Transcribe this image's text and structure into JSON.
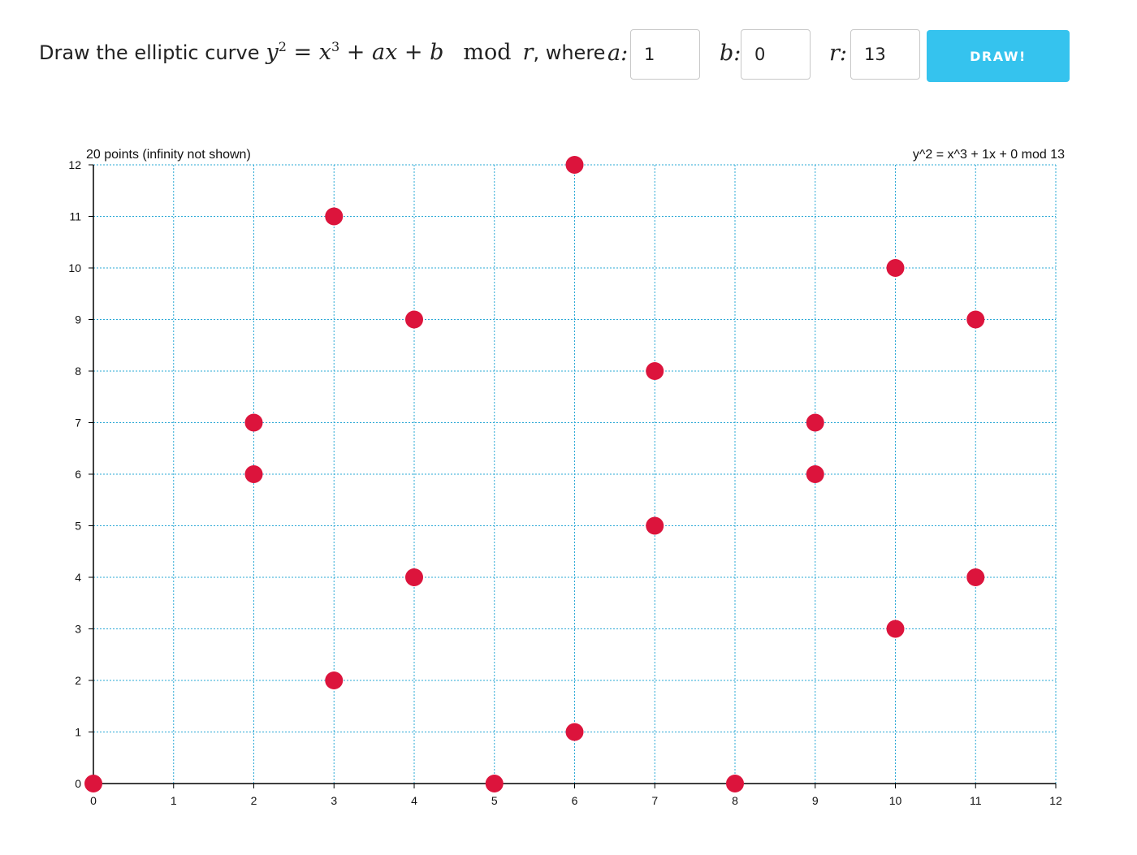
{
  "form": {
    "prompt_text": "Draw the elliptic curve",
    "formula": {
      "y": "y",
      "y_exp": "2",
      "eq": "=",
      "x": "x",
      "x_exp": "3",
      "rest": "+ ax + b",
      "mod": "mod",
      "r": "r"
    },
    "where_text": ", where",
    "a_label": "a:",
    "b_label": "b:",
    "r_label": "r:",
    "a_value": "1",
    "b_value": "0",
    "r_value": "13",
    "draw_label": "DRAW!",
    "draw_color": "#35c3ee"
  },
  "chart_data": {
    "type": "scatter",
    "title_left": "20 points (infinity not shown)",
    "title_right": "y^2 = x^3 + 1x + 0 mod 13",
    "xlim": [
      0,
      12
    ],
    "ylim": [
      0,
      12
    ],
    "x_ticks": [
      0,
      1,
      2,
      3,
      4,
      5,
      6,
      7,
      8,
      9,
      10,
      11,
      12
    ],
    "y_ticks": [
      0,
      1,
      2,
      3,
      4,
      5,
      6,
      7,
      8,
      9,
      10,
      11,
      12
    ],
    "grid": true,
    "grid_color": "#2aa8d6",
    "point_color": "#dc143c",
    "points": [
      [
        0,
        0
      ],
      [
        2,
        6
      ],
      [
        2,
        7
      ],
      [
        3,
        2
      ],
      [
        3,
        11
      ],
      [
        4,
        4
      ],
      [
        4,
        9
      ],
      [
        5,
        0
      ],
      [
        6,
        1
      ],
      [
        6,
        12
      ],
      [
        7,
        5
      ],
      [
        7,
        8
      ],
      [
        8,
        0
      ],
      [
        9,
        6
      ],
      [
        9,
        7
      ],
      [
        10,
        3
      ],
      [
        10,
        10
      ],
      [
        11,
        4
      ],
      [
        11,
        9
      ]
    ]
  }
}
